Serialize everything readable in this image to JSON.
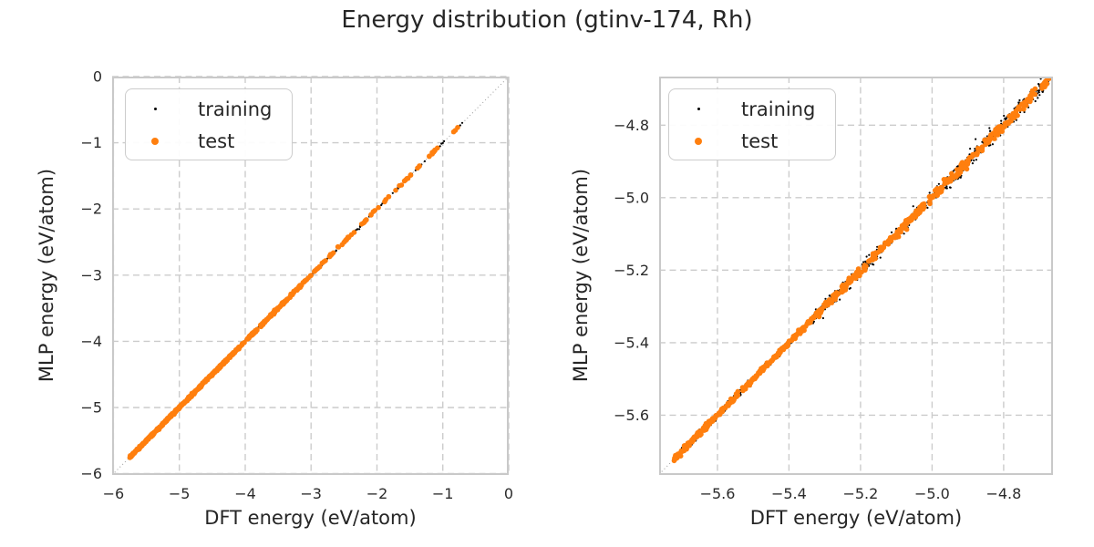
{
  "title": "Energy distribution (gtinv-174, Rh)",
  "colors": {
    "training": "#000000",
    "test": "#ff7f0e",
    "grid": "#cccccc",
    "spine": "#c9c9c9",
    "identity_line": "#999999",
    "text": "#262626",
    "background": "#ffffff",
    "legend_border": "#cccccc"
  },
  "chart_data": [
    {
      "type": "scatter",
      "panel": "left",
      "xlabel": "DFT energy (eV/atom)",
      "ylabel": "MLP energy (eV/atom)",
      "xlim": [
        -6.02,
        0.0
      ],
      "ylim": [
        -6.02,
        0.0
      ],
      "grid": true,
      "grid_linestyle": "dashed",
      "identity_line": true,
      "relation": "points lie on y = x (MLP energy equals DFT energy)",
      "xticks": {
        "values": [
          -6,
          -5,
          -4,
          -3,
          -2,
          -1,
          0
        ],
        "labels": [
          "−6",
          "−5",
          "−4",
          "−3",
          "−2",
          "−1",
          "0"
        ]
      },
      "yticks": {
        "values": [
          0,
          -1,
          -2,
          -3,
          -4,
          -5,
          -6
        ],
        "labels": [
          "0",
          "−1",
          "−2",
          "−3",
          "−4",
          "−5",
          "−6"
        ]
      },
      "legend": {
        "position": "upper-left",
        "items": [
          {
            "label": "training",
            "series": "training"
          },
          {
            "label": "test",
            "series": "test"
          }
        ]
      },
      "series": [
        {
          "name": "training",
          "color": "#000000",
          "marker_radius": 1.1,
          "seed": 11,
          "segments": [
            {
              "x_range": [
                -5.76,
                -4.4
              ],
              "n": 300,
              "jitter": 0.012
            },
            {
              "x_range": [
                -4.4,
                -3.15
              ],
              "n": 220,
              "jitter": 0.012
            },
            {
              "x_range": [
                -3.15,
                -2.2
              ],
              "n": 55,
              "jitter": 0.011
            },
            {
              "x_range": [
                -2.2,
                -1.35
              ],
              "n": 32,
              "jitter": 0.009
            },
            {
              "x_range": [
                -1.35,
                -0.95
              ],
              "n": 8,
              "jitter": 0.007
            },
            {
              "x_range": [
                -0.78,
                -0.7
              ],
              "n": 3,
              "jitter": 0.006
            }
          ]
        },
        {
          "name": "test",
          "color": "#ff7f0e",
          "marker_radius": 2.8,
          "seed": 23,
          "segments": [
            {
              "x_range": [
                -5.76,
                -4.4
              ],
              "n": 300,
              "jitter": 0.009
            },
            {
              "x_range": [
                -4.4,
                -3.15
              ],
              "n": 210,
              "jitter": 0.009
            },
            {
              "x_range": [
                -3.15,
                -2.2
              ],
              "n": 48,
              "jitter": 0.008
            },
            {
              "x_range": [
                -2.2,
                -1.35
              ],
              "n": 26,
              "jitter": 0.007
            },
            {
              "x_range": [
                -1.35,
                -0.95
              ],
              "n": 9,
              "jitter": 0.006
            },
            {
              "x_range": [
                -0.84,
                -0.76
              ],
              "n": 3,
              "jitter": 0.005
            }
          ]
        }
      ]
    },
    {
      "type": "scatter",
      "panel": "right",
      "xlabel": "DFT energy (eV/atom)",
      "ylabel": "MLP energy (eV/atom)",
      "xlim": [
        -5.763,
        -4.662
      ],
      "ylim": [
        -5.765,
        -4.666
      ],
      "grid": true,
      "grid_linestyle": "dashed",
      "identity_line": true,
      "relation": "zoomed view; points lie on y = x with small scatter",
      "xticks": {
        "values": [
          -5.6,
          -5.4,
          -5.2,
          -5.0,
          -4.8
        ],
        "labels": [
          "−5.6",
          "−5.4",
          "−5.2",
          "−5.0",
          "−4.8"
        ]
      },
      "yticks": {
        "values": [
          -4.8,
          -5.0,
          -5.2,
          -5.4,
          -5.6
        ],
        "labels": [
          "−4.8",
          "−5.0",
          "−5.2",
          "−5.4",
          "−5.6"
        ]
      },
      "legend": {
        "position": "upper-left",
        "items": [
          {
            "label": "training",
            "series": "training"
          },
          {
            "label": "test",
            "series": "test"
          }
        ]
      },
      "series": [
        {
          "name": "training",
          "color": "#000000",
          "marker_radius": 1.1,
          "seed": 31,
          "segments": [
            {
              "x_range": [
                -5.725,
                -5.35
              ],
              "n": 200,
              "jitter": 0.005
            },
            {
              "x_range": [
                -5.35,
                -4.95
              ],
              "n": 260,
              "jitter": 0.009
            },
            {
              "x_range": [
                -4.95,
                -4.67
              ],
              "n": 260,
              "jitter": 0.012
            }
          ]
        },
        {
          "name": "test",
          "color": "#ff7f0e",
          "marker_radius": 2.8,
          "seed": 47,
          "segments": [
            {
              "x_range": [
                -5.725,
                -5.35
              ],
              "n": 260,
              "jitter": 0.0035
            },
            {
              "x_range": [
                -5.35,
                -4.95
              ],
              "n": 240,
              "jitter": 0.005
            },
            {
              "x_range": [
                -4.95,
                -4.67
              ],
              "n": 150,
              "jitter": 0.006
            }
          ]
        }
      ]
    }
  ]
}
